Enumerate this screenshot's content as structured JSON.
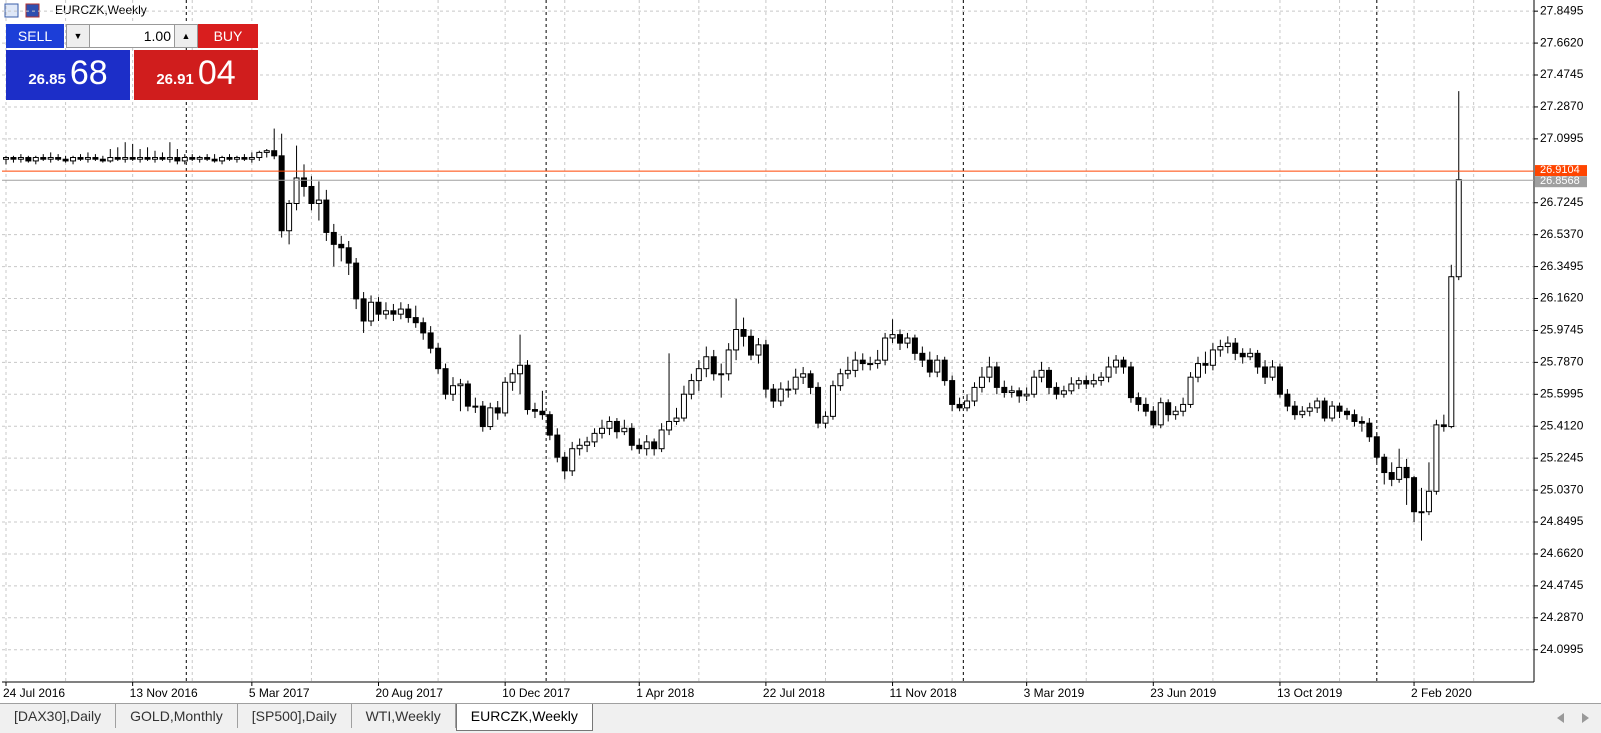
{
  "chart_data": {
    "type": "candlestick",
    "title": "EURCZK,Weekly",
    "categories": [
      "24 Jul 2016",
      null,
      null,
      null,
      null,
      null,
      null,
      null,
      null,
      null,
      null,
      null,
      null,
      null,
      null,
      null,
      null,
      "13 Nov 2016",
      null,
      null,
      null,
      null,
      null,
      null,
      null,
      null,
      null,
      null,
      null,
      null,
      null,
      null,
      null,
      "5 Mar 2017",
      null,
      null,
      null,
      null,
      null,
      null,
      null,
      null,
      null,
      null,
      null,
      null,
      null,
      null,
      null,
      null,
      "20 Aug 2017",
      null,
      null,
      null,
      null,
      null,
      null,
      null,
      null,
      null,
      null,
      null,
      null,
      null,
      null,
      null,
      null,
      "10 Dec 2017",
      null,
      null,
      null,
      null,
      null,
      null,
      null,
      null,
      null,
      null,
      null,
      null,
      null,
      null,
      null,
      null,
      null,
      "1 Apr 2018",
      null,
      null,
      null,
      null,
      null,
      null,
      null,
      null,
      null,
      null,
      null,
      null,
      null,
      null,
      null,
      null,
      "22 Jul 2018",
      null,
      null,
      null,
      null,
      null,
      null,
      null,
      null,
      null,
      null,
      null,
      null,
      null,
      null,
      null,
      null,
      "11 Nov 2018",
      null,
      null,
      null,
      null,
      null,
      null,
      null,
      null,
      null,
      null,
      null,
      null,
      null,
      null,
      null,
      null,
      null,
      "3 Mar 2019",
      null,
      null,
      null,
      null,
      null,
      null,
      null,
      null,
      null,
      null,
      null,
      null,
      null,
      null,
      null,
      null,
      "23 Jun 2019",
      null,
      null,
      null,
      null,
      null,
      null,
      null,
      null,
      null,
      null,
      null,
      null,
      null,
      null,
      null,
      null,
      "13 Oct 2019",
      null,
      null,
      null,
      null,
      null,
      null,
      null,
      null,
      null,
      null,
      null,
      null,
      null,
      null,
      null,
      null,
      null,
      "2 Feb 2020",
      null,
      null,
      null,
      null,
      null,
      null
    ],
    "candles": [
      [
        26.98,
        27.0,
        26.95,
        26.99
      ],
      [
        26.99,
        27.0,
        26.96,
        26.98
      ],
      [
        26.98,
        27.01,
        26.96,
        26.99
      ],
      [
        26.99,
        27.0,
        26.96,
        26.97
      ],
      [
        26.97,
        27.0,
        26.95,
        26.99
      ],
      [
        26.99,
        27.01,
        26.97,
        26.98
      ],
      [
        26.98,
        27.02,
        26.96,
        26.99
      ],
      [
        26.99,
        27.01,
        26.97,
        26.98
      ],
      [
        26.98,
        27.0,
        26.96,
        26.97
      ],
      [
        26.97,
        27.0,
        26.95,
        26.99
      ],
      [
        26.99,
        27.01,
        26.97,
        26.98
      ],
      [
        26.98,
        27.02,
        26.96,
        26.99
      ],
      [
        26.99,
        27.01,
        26.97,
        26.98
      ],
      [
        26.98,
        27.0,
        26.96,
        26.97
      ],
      [
        26.97,
        27.04,
        26.96,
        26.99
      ],
      [
        26.99,
        27.05,
        26.97,
        26.98
      ],
      [
        26.98,
        27.08,
        26.96,
        26.99
      ],
      [
        26.99,
        27.07,
        26.97,
        26.98
      ],
      [
        26.98,
        27.04,
        26.96,
        26.99
      ],
      [
        26.99,
        27.05,
        26.97,
        26.98
      ],
      [
        26.98,
        27.03,
        26.96,
        26.99
      ],
      [
        26.99,
        27.02,
        26.97,
        26.98
      ],
      [
        26.98,
        27.08,
        26.96,
        26.99
      ],
      [
        26.99,
        27.04,
        26.95,
        26.97
      ],
      [
        26.97,
        27.01,
        26.95,
        26.99
      ],
      [
        26.99,
        27.01,
        26.97,
        26.98
      ],
      [
        26.98,
        27.0,
        26.96,
        26.99
      ],
      [
        26.99,
        27.01,
        26.97,
        26.98
      ],
      [
        26.98,
        27.01,
        26.96,
        26.97
      ],
      [
        26.97,
        27.0,
        26.95,
        26.99
      ],
      [
        26.99,
        27.01,
        26.97,
        26.98
      ],
      [
        26.98,
        27.0,
        26.96,
        26.99
      ],
      [
        26.99,
        27.01,
        26.97,
        26.98
      ],
      [
        26.98,
        27.02,
        26.96,
        26.99
      ],
      [
        26.99,
        27.03,
        26.97,
        27.02
      ],
      [
        27.02,
        27.04,
        26.99,
        27.03
      ],
      [
        27.03,
        27.16,
        26.98,
        27.0
      ],
      [
        27.0,
        27.13,
        26.52,
        26.56
      ],
      [
        26.56,
        26.74,
        26.48,
        26.72
      ],
      [
        26.72,
        27.06,
        26.68,
        26.87
      ],
      [
        26.87,
        26.95,
        26.76,
        26.82
      ],
      [
        26.82,
        26.88,
        26.68,
        26.72
      ],
      [
        26.72,
        26.85,
        26.62,
        26.74
      ],
      [
        26.74,
        26.8,
        26.5,
        26.55
      ],
      [
        26.55,
        26.6,
        26.35,
        26.48
      ],
      [
        26.48,
        26.53,
        26.38,
        26.46
      ],
      [
        26.46,
        26.5,
        26.3,
        26.37
      ],
      [
        26.37,
        26.4,
        26.1,
        26.16
      ],
      [
        26.16,
        26.2,
        25.96,
        26.03
      ],
      [
        26.03,
        26.18,
        26.0,
        26.14
      ],
      [
        26.14,
        26.17,
        26.03,
        26.07
      ],
      [
        26.07,
        26.14,
        26.04,
        26.09
      ],
      [
        26.09,
        26.13,
        26.03,
        26.07
      ],
      [
        26.07,
        26.14,
        26.04,
        26.1
      ],
      [
        26.1,
        26.13,
        26.02,
        26.05
      ],
      [
        26.05,
        26.12,
        25.99,
        26.02
      ],
      [
        26.02,
        26.05,
        25.92,
        25.96
      ],
      [
        25.96,
        26.0,
        25.84,
        25.87
      ],
      [
        25.87,
        25.9,
        25.72,
        25.75
      ],
      [
        25.75,
        25.78,
        25.57,
        25.6
      ],
      [
        25.6,
        25.7,
        25.56,
        25.65
      ],
      [
        25.65,
        25.69,
        25.5,
        25.66
      ],
      [
        25.66,
        25.68,
        25.5,
        25.53
      ],
      [
        25.53,
        25.58,
        25.49,
        25.53
      ],
      [
        25.53,
        25.56,
        25.38,
        25.41
      ],
      [
        25.41,
        25.55,
        25.39,
        25.52
      ],
      [
        25.52,
        25.56,
        25.45,
        25.49
      ],
      [
        25.49,
        25.7,
        25.47,
        25.67
      ],
      [
        25.67,
        25.75,
        25.62,
        25.72
      ],
      [
        25.72,
        25.95,
        25.6,
        25.77
      ],
      [
        25.77,
        25.8,
        25.48,
        25.51
      ],
      [
        25.51,
        25.55,
        25.46,
        25.5
      ],
      [
        25.5,
        25.62,
        25.45,
        25.48
      ],
      [
        25.48,
        25.5,
        25.33,
        25.36
      ],
      [
        25.36,
        25.4,
        25.2,
        25.23
      ],
      [
        25.23,
        25.26,
        25.1,
        25.15
      ],
      [
        25.15,
        25.32,
        25.12,
        25.28
      ],
      [
        25.28,
        25.34,
        25.24,
        25.3
      ],
      [
        25.3,
        25.35,
        25.26,
        25.32
      ],
      [
        25.32,
        25.4,
        25.29,
        25.37
      ],
      [
        25.37,
        25.45,
        25.34,
        25.4
      ],
      [
        25.4,
        25.47,
        25.36,
        25.44
      ],
      [
        25.44,
        25.46,
        25.34,
        25.38
      ],
      [
        25.38,
        25.45,
        25.36,
        25.4
      ],
      [
        25.4,
        25.43,
        25.27,
        25.3
      ],
      [
        25.3,
        25.34,
        25.25,
        25.28
      ],
      [
        25.28,
        25.36,
        25.24,
        25.32
      ],
      [
        25.32,
        25.34,
        25.24,
        25.28
      ],
      [
        25.28,
        25.43,
        25.26,
        25.39
      ],
      [
        25.39,
        25.84,
        25.36,
        25.44
      ],
      [
        25.44,
        25.52,
        25.42,
        25.46
      ],
      [
        25.46,
        25.65,
        25.44,
        25.6
      ],
      [
        25.6,
        25.72,
        25.57,
        25.68
      ],
      [
        25.68,
        25.8,
        25.62,
        25.75
      ],
      [
        25.75,
        25.88,
        25.7,
        25.82
      ],
      [
        25.82,
        25.86,
        25.68,
        25.72
      ],
      [
        25.72,
        25.78,
        25.58,
        25.72
      ],
      [
        25.72,
        25.9,
        25.68,
        25.86
      ],
      [
        25.86,
        26.16,
        25.8,
        25.98
      ],
      [
        25.98,
        26.05,
        25.88,
        25.94
      ],
      [
        25.94,
        25.98,
        25.8,
        25.83
      ],
      [
        25.83,
        25.93,
        25.78,
        25.89
      ],
      [
        25.89,
        25.92,
        25.58,
        25.63
      ],
      [
        25.63,
        25.66,
        25.52,
        25.56
      ],
      [
        25.56,
        25.67,
        25.53,
        25.63
      ],
      [
        25.63,
        25.68,
        25.58,
        25.63
      ],
      [
        25.63,
        25.75,
        25.6,
        25.7
      ],
      [
        25.7,
        25.76,
        25.66,
        25.72
      ],
      [
        25.72,
        25.74,
        25.6,
        25.64
      ],
      [
        25.64,
        25.67,
        25.4,
        25.43
      ],
      [
        25.43,
        25.5,
        25.4,
        25.47
      ],
      [
        25.47,
        25.68,
        25.45,
        25.65
      ],
      [
        25.65,
        25.75,
        25.62,
        25.72
      ],
      [
        25.72,
        25.82,
        25.69,
        25.74
      ],
      [
        25.74,
        25.85,
        25.7,
        25.8
      ],
      [
        25.8,
        25.84,
        25.74,
        25.78
      ],
      [
        25.78,
        25.82,
        25.74,
        25.78
      ],
      [
        25.78,
        25.86,
        25.75,
        25.8
      ],
      [
        25.8,
        25.96,
        25.77,
        25.93
      ],
      [
        25.93,
        26.04,
        25.9,
        25.95
      ],
      [
        25.95,
        25.98,
        25.86,
        25.9
      ],
      [
        25.9,
        25.96,
        25.87,
        25.93
      ],
      [
        25.93,
        25.95,
        25.8,
        25.84
      ],
      [
        25.84,
        25.88,
        25.76,
        25.8
      ],
      [
        25.8,
        25.85,
        25.7,
        25.73
      ],
      [
        25.73,
        25.83,
        25.7,
        25.8
      ],
      [
        25.8,
        25.82,
        25.65,
        25.68
      ],
      [
        25.68,
        25.71,
        25.5,
        25.54
      ],
      [
        25.54,
        25.58,
        25.5,
        25.52
      ],
      [
        25.52,
        25.6,
        25.5,
        25.56
      ],
      [
        25.56,
        25.67,
        25.53,
        25.64
      ],
      [
        25.64,
        25.76,
        25.61,
        25.7
      ],
      [
        25.7,
        25.82,
        25.67,
        25.76
      ],
      [
        25.76,
        25.79,
        25.6,
        25.64
      ],
      [
        25.64,
        25.68,
        25.58,
        25.61
      ],
      [
        25.61,
        25.65,
        25.58,
        25.62
      ],
      [
        25.62,
        25.64,
        25.55,
        25.59
      ],
      [
        25.59,
        25.64,
        25.56,
        25.6
      ],
      [
        25.6,
        25.74,
        25.58,
        25.7
      ],
      [
        25.7,
        25.79,
        25.67,
        25.74
      ],
      [
        25.74,
        25.76,
        25.6,
        25.64
      ],
      [
        25.64,
        25.67,
        25.57,
        25.6
      ],
      [
        25.6,
        25.65,
        25.58,
        25.62
      ],
      [
        25.62,
        25.7,
        25.6,
        25.66
      ],
      [
        25.66,
        25.7,
        25.63,
        25.68
      ],
      [
        25.68,
        25.71,
        25.63,
        25.66
      ],
      [
        25.66,
        25.72,
        25.64,
        25.68
      ],
      [
        25.68,
        25.73,
        25.65,
        25.7
      ],
      [
        25.7,
        25.82,
        25.67,
        25.76
      ],
      [
        25.76,
        25.83,
        25.72,
        25.8
      ],
      [
        25.8,
        25.82,
        25.72,
        25.76
      ],
      [
        25.76,
        25.79,
        25.55,
        25.58
      ],
      [
        25.58,
        25.61,
        25.5,
        25.54
      ],
      [
        25.54,
        25.58,
        25.47,
        25.5
      ],
      [
        25.5,
        25.53,
        25.4,
        25.42
      ],
      [
        25.42,
        25.58,
        25.4,
        25.55
      ],
      [
        25.55,
        25.57,
        25.44,
        25.48
      ],
      [
        25.48,
        25.53,
        25.45,
        25.5
      ],
      [
        25.5,
        25.58,
        25.47,
        25.54
      ],
      [
        25.54,
        25.73,
        25.52,
        25.7
      ],
      [
        25.7,
        25.82,
        25.67,
        25.78
      ],
      [
        25.78,
        25.85,
        25.72,
        25.77
      ],
      [
        25.77,
        25.9,
        25.74,
        25.86
      ],
      [
        25.86,
        25.92,
        25.82,
        25.88
      ],
      [
        25.88,
        25.94,
        25.84,
        25.9
      ],
      [
        25.9,
        25.93,
        25.8,
        25.84
      ],
      [
        25.84,
        25.87,
        25.78,
        25.82
      ],
      [
        25.82,
        25.87,
        25.8,
        25.84
      ],
      [
        25.84,
        25.86,
        25.72,
        25.76
      ],
      [
        25.76,
        25.8,
        25.66,
        25.7
      ],
      [
        25.7,
        25.8,
        25.68,
        25.76
      ],
      [
        25.76,
        25.78,
        25.58,
        25.6
      ],
      [
        25.6,
        25.63,
        25.5,
        25.53
      ],
      [
        25.53,
        25.56,
        25.45,
        25.48
      ],
      [
        25.48,
        25.53,
        25.46,
        25.5
      ],
      [
        25.5,
        25.55,
        25.47,
        25.52
      ],
      [
        25.52,
        25.58,
        25.49,
        25.56
      ],
      [
        25.56,
        25.58,
        25.44,
        25.46
      ],
      [
        25.46,
        25.56,
        25.44,
        25.53
      ],
      [
        25.53,
        25.55,
        25.46,
        25.5
      ],
      [
        25.5,
        25.52,
        25.45,
        25.48
      ],
      [
        25.48,
        25.51,
        25.41,
        25.44
      ],
      [
        25.44,
        25.47,
        25.38,
        25.43
      ],
      [
        25.43,
        25.46,
        25.32,
        25.35
      ],
      [
        25.35,
        25.37,
        25.2,
        25.23
      ],
      [
        25.23,
        25.25,
        25.07,
        25.14
      ],
      [
        25.14,
        25.2,
        25.06,
        25.1
      ],
      [
        25.1,
        25.28,
        25.08,
        25.17
      ],
      [
        25.17,
        25.22,
        24.95,
        25.11
      ],
      [
        25.11,
        25.12,
        24.85,
        24.91
      ],
      [
        24.91,
        25.05,
        24.74,
        24.91
      ],
      [
        24.91,
        25.2,
        24.89,
        25.03
      ],
      [
        25.03,
        25.45,
        25.01,
        25.42
      ],
      [
        25.42,
        25.48,
        25.38,
        25.41
      ],
      [
        25.41,
        26.36,
        25.4,
        26.29
      ],
      [
        26.29,
        27.38,
        26.27,
        26.86
      ]
    ],
    "ylim": [
      23.91,
      27.915
    ],
    "yticks": [
      27.8495,
      {
        "value": 27.662,
        "label": "27.6620"
      },
      27.4745,
      {
        "value": 27.287,
        "label": "27.2870"
      },
      27.0995,
      26.7245,
      {
        "value": 26.537,
        "label": "26.5370"
      },
      26.3495,
      {
        "value": 26.162,
        "label": "26.1620"
      },
      25.9745,
      {
        "value": 25.787,
        "label": "25.7870"
      },
      25.5995,
      {
        "value": 25.412,
        "label": "25.4120"
      },
      25.2245,
      {
        "value": 25.037,
        "label": "25.0370"
      },
      24.8495,
      {
        "value": 24.662,
        "label": "24.6620"
      },
      24.4745,
      {
        "value": 24.287,
        "label": "24.2870"
      },
      24.0995
    ],
    "grid": true,
    "up_color": "#ffffff",
    "down_color": "#000000",
    "ask": 26.9104,
    "bid": 26.8568,
    "ask_color": "#ff4500",
    "bid_color": "#a0a0a0"
  },
  "trade_panel": {
    "sell": "SELL",
    "buy": "BUY",
    "lot": "1.00",
    "sell_price_main": "26.85",
    "sell_price_pips": "68",
    "buy_price_main": "26.91",
    "buy_price_pips": "04"
  },
  "tabs": [
    "[DAX30],Daily",
    "GOLD,Monthly",
    "[SP500],Daily",
    "WTI,Weekly",
    "EURCZK,Weekly"
  ]
}
